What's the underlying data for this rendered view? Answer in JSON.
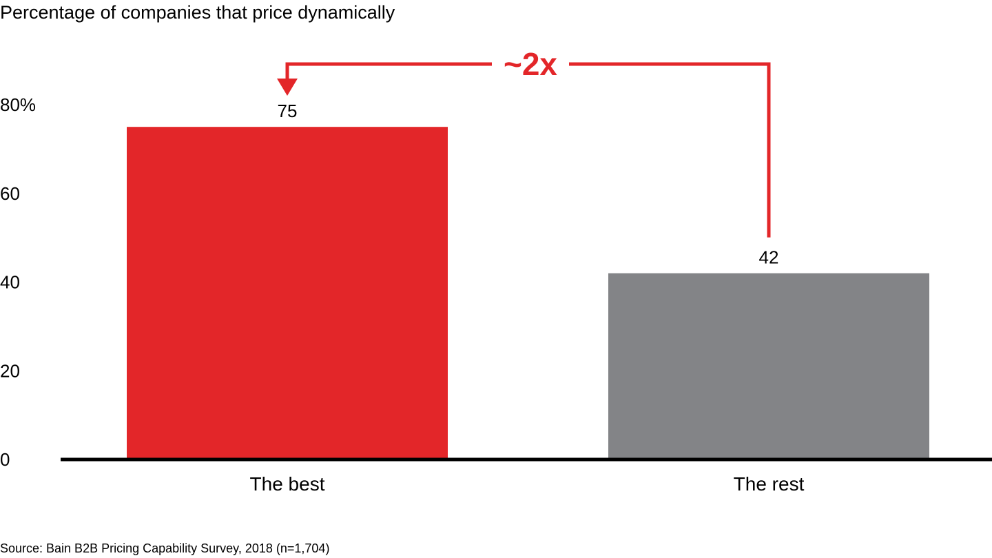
{
  "chart_data": {
    "type": "bar",
    "title": "Percentage of companies that price dynamically",
    "categories": [
      "The best",
      "The rest"
    ],
    "values": [
      75,
      42
    ],
    "data_labels": [
      "75",
      "42"
    ],
    "colors": [
      "#e32629",
      "#838487"
    ],
    "ylim": [
      0,
      80
    ],
    "yticks": [
      0,
      20,
      40,
      60,
      80
    ],
    "ytick_labels": [
      "0",
      "20",
      "40",
      "60",
      "80%"
    ],
    "grid": false,
    "xlabel": "",
    "ylabel": "",
    "annotation": {
      "text": "~2x",
      "from": "The rest",
      "to": "The best",
      "color": "#e32629"
    }
  },
  "source": "Source: Bain B2B Pricing Capability Survey, 2018 (n=1,704)"
}
